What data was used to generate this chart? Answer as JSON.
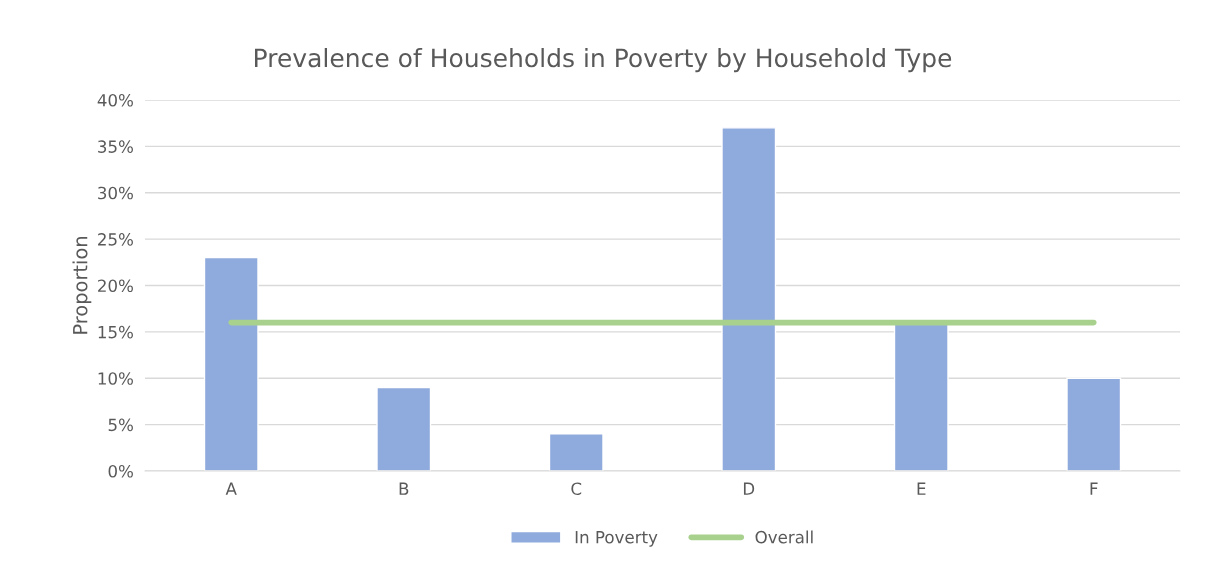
{
  "chart_data": {
    "type": "bar",
    "title": "Prevalence of Households in Poverty by Household Type",
    "ylabel": "Proportion",
    "categories": [
      "A",
      "B",
      "C",
      "D",
      "E",
      "F"
    ],
    "series": [
      {
        "name": "In Poverty",
        "color": "#8faadc",
        "values": [
          23,
          9,
          4,
          37,
          16,
          10
        ]
      },
      {
        "name": "Overall",
        "type": "line",
        "color": "#a9d18e",
        "values": [
          16,
          16,
          16,
          16,
          16,
          16
        ]
      }
    ],
    "ylim": [
      0,
      40
    ],
    "yticks": [
      {
        "value": 0,
        "label": "0%"
      },
      {
        "value": 5,
        "label": "5%"
      },
      {
        "value": 10,
        "label": "10%"
      },
      {
        "value": 15,
        "label": "15%"
      },
      {
        "value": 20,
        "label": "20%"
      },
      {
        "value": 25,
        "label": "25%"
      },
      {
        "value": 30,
        "label": "30%"
      },
      {
        "value": 35,
        "label": "35%"
      },
      {
        "value": 40,
        "label": "40%"
      }
    ],
    "grid": "y",
    "legend": "bottom",
    "marker": "none",
    "line_style": "solid"
  }
}
